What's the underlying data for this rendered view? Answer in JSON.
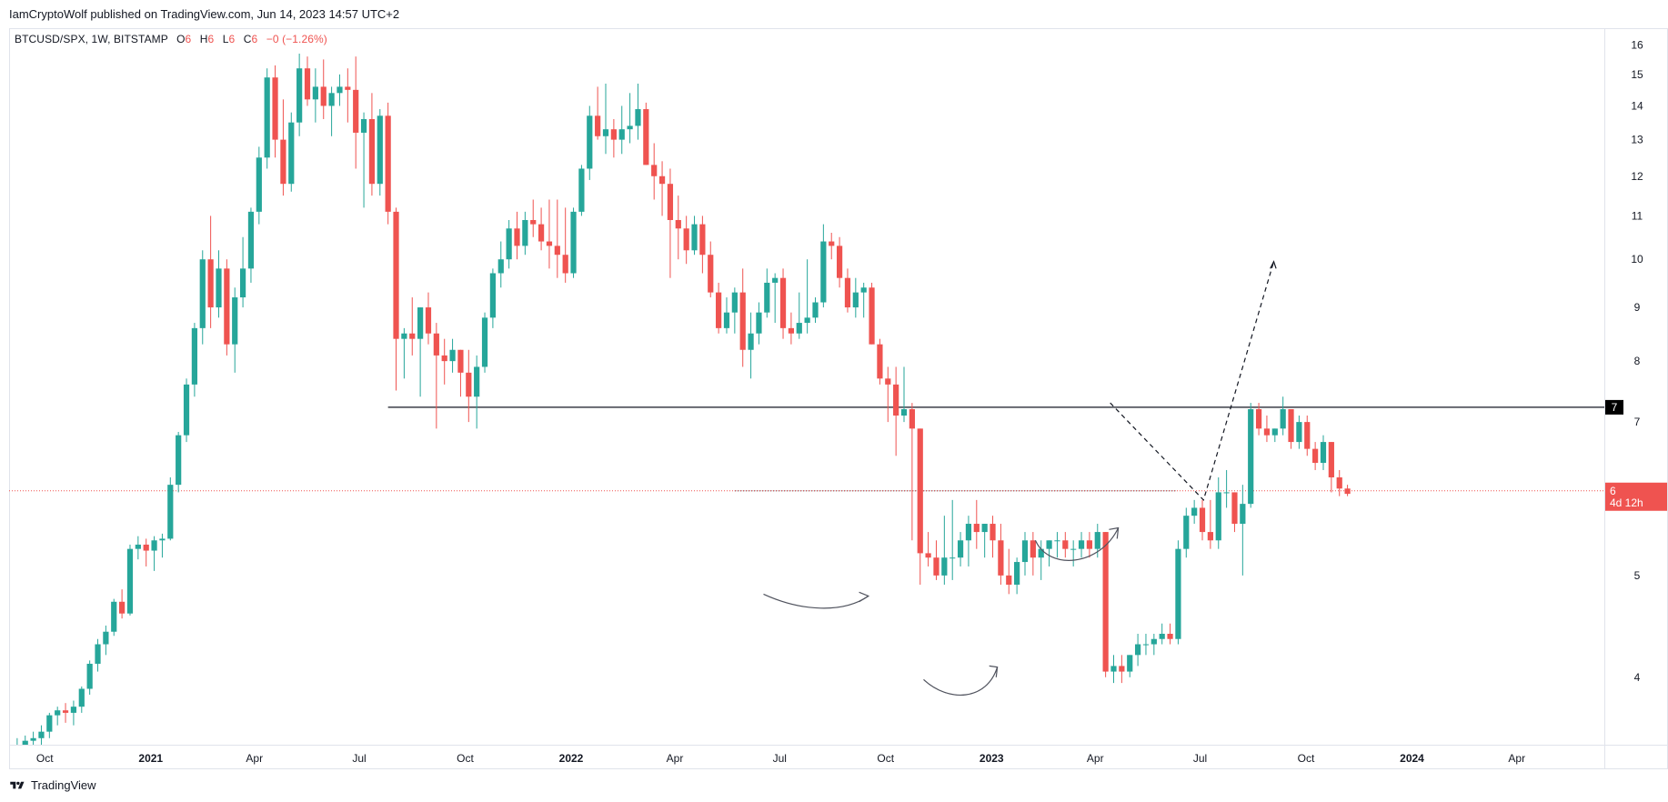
{
  "header": {
    "text": "IamCryptoWolf published on TradingView.com, Jun 14, 2023 14:57 UTC+2"
  },
  "legend": {
    "symbol": "BTCUSD/SPX, 1W, BITSTAMP",
    "o_label": "O",
    "o_value": "6",
    "h_label": "H",
    "h_value": "6",
    "l_label": "L",
    "l_value": "6",
    "c_label": "C",
    "c_value": "6",
    "change": "−0 (−1.26%)"
  },
  "footer": {
    "brand": "TradingView"
  },
  "colors": {
    "up": "#26a69a",
    "down": "#ef5350",
    "axis_text": "#131722",
    "grid": "#e0e3eb"
  },
  "chart_data": {
    "type": "candlestick",
    "interval": "1W",
    "y_scale": "log",
    "ylim": [
      3.45,
      16.6
    ],
    "y_ticks": [
      4,
      5,
      6,
      7,
      8,
      9,
      10,
      11,
      12,
      13,
      14,
      15,
      16
    ],
    "x_range": [
      "2020-08-31",
      "2024-06-16"
    ],
    "x_ticks": [
      {
        "date": "2020-10-01",
        "label": "Oct"
      },
      {
        "date": "2021-01-01",
        "label": "2021"
      },
      {
        "date": "2021-04-01",
        "label": "Apr"
      },
      {
        "date": "2021-07-01",
        "label": "Jul"
      },
      {
        "date": "2021-10-01",
        "label": "Oct"
      },
      {
        "date": "2022-01-01",
        "label": "2022"
      },
      {
        "date": "2022-04-01",
        "label": "Apr"
      },
      {
        "date": "2022-07-01",
        "label": "Jul"
      },
      {
        "date": "2022-10-01",
        "label": "Oct"
      },
      {
        "date": "2023-01-01",
        "label": "2023"
      },
      {
        "date": "2023-04-01",
        "label": "Apr"
      },
      {
        "date": "2023-07-01",
        "label": "Jul"
      },
      {
        "date": "2023-10-01",
        "label": "Oct"
      },
      {
        "date": "2024-01-01",
        "label": "2024"
      },
      {
        "date": "2024-04-01",
        "label": "Apr"
      }
    ],
    "candles_start": "2020-09-07",
    "candles": [
      [
        3.4,
        3.5,
        3.3,
        3.45
      ],
      [
        3.45,
        3.52,
        3.4,
        3.48
      ],
      [
        3.48,
        3.55,
        3.42,
        3.5
      ],
      [
        3.5,
        3.6,
        3.45,
        3.55
      ],
      [
        3.55,
        3.7,
        3.5,
        3.68
      ],
      [
        3.68,
        3.75,
        3.6,
        3.72
      ],
      [
        3.72,
        3.78,
        3.62,
        3.7
      ],
      [
        3.7,
        3.8,
        3.6,
        3.75
      ],
      [
        3.75,
        3.92,
        3.7,
        3.9
      ],
      [
        3.9,
        4.15,
        3.85,
        4.12
      ],
      [
        4.12,
        4.35,
        4.05,
        4.3
      ],
      [
        4.3,
        4.48,
        4.2,
        4.42
      ],
      [
        4.42,
        4.75,
        4.38,
        4.72
      ],
      [
        4.72,
        4.85,
        4.55,
        4.6
      ],
      [
        4.6,
        5.35,
        4.58,
        5.3
      ],
      [
        5.3,
        5.45,
        5.18,
        5.35
      ],
      [
        5.35,
        5.42,
        5.1,
        5.28
      ],
      [
        5.28,
        5.45,
        5.05,
        5.4
      ],
      [
        5.4,
        5.48,
        5.2,
        5.42
      ],
      [
        5.42,
        6.2,
        5.4,
        6.1
      ],
      [
        6.1,
        6.85,
        6.0,
        6.8
      ],
      [
        6.8,
        7.7,
        6.7,
        7.6
      ],
      [
        7.6,
        8.7,
        7.4,
        8.6
      ],
      [
        8.6,
        10.2,
        8.3,
        10.0
      ],
      [
        10.0,
        11.0,
        8.6,
        9.0
      ],
      [
        9.0,
        10.2,
        8.8,
        9.8
      ],
      [
        9.8,
        10.0,
        8.1,
        8.3
      ],
      [
        8.3,
        9.4,
        7.8,
        9.2
      ],
      [
        9.2,
        10.5,
        9.0,
        9.8
      ],
      [
        9.8,
        11.2,
        9.5,
        11.1
      ],
      [
        11.1,
        12.8,
        10.8,
        12.5
      ],
      [
        12.5,
        15.2,
        12.2,
        14.9
      ],
      [
        14.9,
        15.3,
        12.5,
        13.0
      ],
      [
        13.0,
        14.2,
        11.5,
        11.8
      ],
      [
        11.8,
        13.8,
        11.6,
        13.5
      ],
      [
        13.5,
        15.7,
        13.1,
        15.2
      ],
      [
        15.2,
        15.6,
        14.0,
        14.2
      ],
      [
        14.2,
        15.2,
        13.5,
        14.6
      ],
      [
        14.6,
        15.5,
        13.6,
        14.0
      ],
      [
        14.0,
        14.6,
        13.1,
        14.4
      ],
      [
        14.4,
        15.0,
        14.0,
        14.6
      ],
      [
        14.6,
        15.2,
        13.5,
        14.5
      ],
      [
        14.5,
        15.6,
        12.2,
        13.2
      ],
      [
        13.2,
        13.8,
        11.2,
        13.6
      ],
      [
        13.6,
        14.4,
        11.5,
        11.8
      ],
      [
        11.8,
        13.9,
        11.5,
        13.7
      ],
      [
        13.7,
        14.1,
        10.8,
        11.1
      ],
      [
        11.1,
        11.2,
        7.5,
        8.4
      ],
      [
        8.4,
        8.6,
        7.7,
        8.5
      ],
      [
        8.5,
        9.2,
        8.1,
        8.4
      ],
      [
        8.4,
        9.0,
        7.4,
        9.0
      ],
      [
        9.0,
        9.3,
        8.3,
        8.5
      ],
      [
        8.5,
        8.7,
        6.9,
        8.1
      ],
      [
        8.1,
        8.4,
        7.6,
        8.0
      ],
      [
        8.0,
        8.4,
        7.8,
        8.2
      ],
      [
        8.2,
        8.2,
        7.4,
        7.8
      ],
      [
        7.8,
        8.2,
        7.0,
        7.4
      ],
      [
        7.4,
        8.1,
        6.9,
        7.9
      ],
      [
        7.9,
        8.9,
        7.8,
        8.8
      ],
      [
        8.8,
        9.8,
        8.6,
        9.7
      ],
      [
        9.7,
        10.4,
        9.4,
        10.0
      ],
      [
        10.0,
        10.9,
        9.8,
        10.7
      ],
      [
        10.7,
        11.1,
        10.0,
        10.3
      ],
      [
        10.3,
        11.1,
        10.1,
        10.9
      ],
      [
        10.9,
        11.4,
        10.5,
        10.8
      ],
      [
        10.8,
        11.2,
        10.2,
        10.4
      ],
      [
        10.4,
        11.4,
        9.8,
        10.3
      ],
      [
        10.3,
        11.4,
        9.6,
        10.1
      ],
      [
        10.1,
        11.2,
        9.5,
        9.7
      ],
      [
        9.7,
        11.2,
        9.6,
        11.1
      ],
      [
        11.1,
        12.3,
        11.0,
        12.2
      ],
      [
        12.2,
        14.0,
        11.9,
        13.7
      ],
      [
        13.7,
        14.6,
        13.0,
        13.1
      ],
      [
        13.1,
        14.7,
        12.6,
        13.3
      ],
      [
        13.3,
        13.6,
        12.5,
        13.0
      ],
      [
        13.0,
        14.0,
        12.6,
        13.3
      ],
      [
        13.3,
        14.4,
        12.9,
        13.4
      ],
      [
        13.4,
        14.7,
        13.0,
        13.9
      ],
      [
        13.9,
        14.1,
        12.3,
        12.3
      ],
      [
        12.3,
        12.9,
        11.4,
        12.0
      ],
      [
        12.0,
        12.4,
        11.0,
        11.8
      ],
      [
        11.8,
        12.2,
        9.6,
        10.9
      ],
      [
        10.9,
        11.5,
        10.0,
        10.7
      ],
      [
        10.7,
        11.0,
        9.9,
        10.2
      ],
      [
        10.2,
        11.0,
        10.1,
        10.8
      ],
      [
        10.8,
        11.0,
        9.7,
        10.1
      ],
      [
        10.1,
        10.4,
        9.2,
        9.3
      ],
      [
        9.3,
        9.5,
        8.5,
        8.6
      ],
      [
        8.6,
        9.2,
        8.5,
        8.9
      ],
      [
        8.9,
        9.4,
        8.5,
        9.3
      ],
      [
        9.3,
        9.8,
        7.9,
        8.2
      ],
      [
        8.2,
        8.9,
        7.7,
        8.5
      ],
      [
        8.5,
        9.1,
        8.3,
        8.9
      ],
      [
        8.9,
        9.8,
        8.8,
        9.5
      ],
      [
        9.5,
        9.7,
        8.7,
        9.6
      ],
      [
        9.6,
        9.8,
        8.4,
        8.6
      ],
      [
        8.6,
        8.9,
        8.3,
        8.5
      ],
      [
        8.5,
        9.3,
        8.4,
        8.7
      ],
      [
        8.7,
        10.0,
        8.5,
        8.8
      ],
      [
        8.8,
        9.2,
        8.7,
        9.1
      ],
      [
        9.1,
        10.8,
        9.0,
        10.4
      ],
      [
        10.4,
        10.6,
        10.0,
        10.3
      ],
      [
        10.3,
        10.5,
        9.4,
        9.6
      ],
      [
        9.6,
        9.8,
        8.9,
        9.0
      ],
      [
        9.0,
        9.6,
        8.8,
        9.3
      ],
      [
        9.3,
        9.5,
        8.8,
        9.4
      ],
      [
        9.4,
        9.5,
        8.3,
        8.3
      ],
      [
        8.3,
        8.4,
        7.6,
        7.7
      ],
      [
        7.7,
        7.9,
        7.0,
        7.6
      ],
      [
        7.6,
        7.9,
        6.5,
        7.1
      ],
      [
        7.1,
        7.9,
        7.0,
        7.2
      ],
      [
        7.2,
        7.3,
        5.4,
        6.9
      ],
      [
        6.9,
        6.9,
        4.9,
        5.25
      ],
      [
        5.25,
        5.5,
        5.1,
        5.2
      ],
      [
        5.2,
        5.4,
        4.95,
        5.0
      ],
      [
        5.0,
        5.7,
        4.9,
        5.2
      ],
      [
        5.2,
        5.9,
        4.95,
        5.2
      ],
      [
        5.2,
        5.5,
        5.1,
        5.4
      ],
      [
        5.4,
        5.7,
        5.1,
        5.6
      ],
      [
        5.6,
        5.9,
        5.3,
        5.5
      ],
      [
        5.5,
        5.6,
        5.2,
        5.6
      ],
      [
        5.6,
        5.7,
        5.2,
        5.4
      ],
      [
        5.4,
        5.6,
        4.9,
        5.0
      ],
      [
        5.0,
        5.3,
        4.8,
        4.9
      ],
      [
        4.9,
        5.2,
        4.8,
        5.15
      ],
      [
        5.15,
        5.5,
        5.0,
        5.4
      ],
      [
        5.4,
        5.5,
        5.0,
        5.2
      ],
      [
        5.2,
        5.4,
        4.95,
        5.3
      ],
      [
        5.3,
        5.4,
        5.1,
        5.4
      ],
      [
        5.4,
        5.5,
        5.2,
        5.4
      ],
      [
        5.4,
        5.5,
        5.2,
        5.3
      ],
      [
        5.3,
        5.4,
        5.1,
        5.3
      ],
      [
        5.3,
        5.5,
        5.2,
        5.4
      ],
      [
        5.4,
        5.5,
        5.2,
        5.3
      ],
      [
        5.3,
        5.6,
        5.2,
        5.5
      ],
      [
        5.5,
        5.5,
        4.0,
        4.05
      ],
      [
        4.05,
        4.2,
        3.95,
        4.1
      ],
      [
        4.1,
        4.2,
        3.95,
        4.05
      ],
      [
        4.05,
        4.2,
        4.0,
        4.2
      ],
      [
        4.2,
        4.4,
        4.1,
        4.3
      ],
      [
        4.3,
        4.4,
        4.2,
        4.3
      ],
      [
        4.3,
        4.4,
        4.2,
        4.35
      ],
      [
        4.35,
        4.5,
        4.3,
        4.4
      ],
      [
        4.4,
        4.5,
        4.3,
        4.35
      ],
      [
        4.35,
        5.4,
        4.3,
        5.3
      ],
      [
        5.3,
        5.8,
        5.2,
        5.7
      ],
      [
        5.7,
        5.9,
        5.6,
        5.8
      ],
      [
        5.8,
        5.9,
        5.4,
        5.5
      ],
      [
        5.5,
        5.9,
        5.3,
        5.4
      ],
      [
        5.4,
        6.2,
        5.3,
        6.0
      ],
      [
        6.0,
        6.3,
        5.8,
        6.0
      ],
      [
        6.0,
        6.0,
        5.5,
        5.6
      ],
      [
        5.6,
        6.1,
        5.0,
        5.85
      ],
      [
        5.85,
        7.3,
        5.8,
        7.2
      ],
      [
        7.2,
        7.3,
        6.8,
        6.9
      ],
      [
        6.9,
        7.1,
        6.7,
        6.8
      ],
      [
        6.8,
        6.9,
        6.7,
        6.9
      ],
      [
        6.9,
        7.4,
        6.8,
        7.2
      ],
      [
        7.2,
        7.2,
        6.6,
        6.7
      ],
      [
        6.7,
        7.1,
        6.6,
        7.0
      ],
      [
        7.0,
        7.1,
        6.5,
        6.6
      ],
      [
        6.6,
        6.7,
        6.3,
        6.4
      ],
      [
        6.4,
        6.8,
        6.3,
        6.7
      ],
      [
        6.7,
        6.7,
        6.0,
        6.2
      ],
      [
        6.2,
        6.3,
        5.95,
        6.05
      ],
      [
        6.05,
        6.1,
        5.95,
        5.98
      ]
    ],
    "horizontal_lines": [
      {
        "price": 7.23,
        "style": "solid",
        "from_date": "2021-07-26"
      },
      {
        "price": 6.02,
        "style": "dotted",
        "from_date": "2022-05-23"
      }
    ],
    "right_axis_badges": [
      {
        "price": 7.23,
        "label": "7",
        "color": "#000000"
      },
      {
        "price": 6.02,
        "label": "6",
        "sub": "4d 12h",
        "color": "#ef5350"
      }
    ]
  }
}
